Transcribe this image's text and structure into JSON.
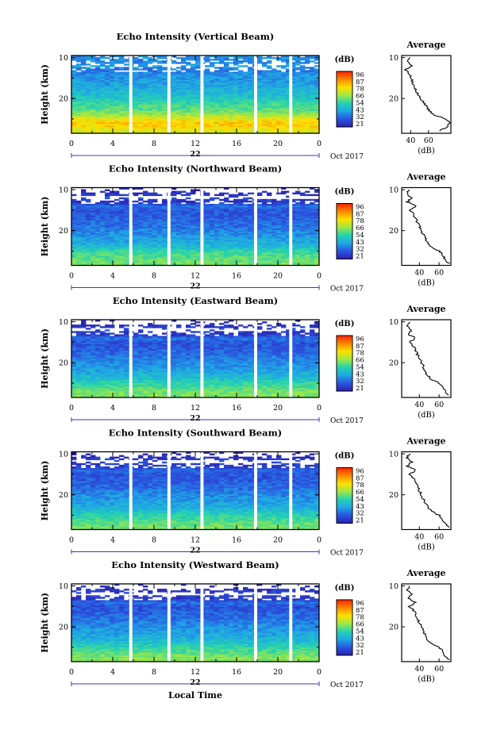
{
  "figure": {
    "x_axis_label": "Local Time",
    "date_day": "22",
    "date_suffix": "Oct 2017",
    "colorbar_unit": "(dB)",
    "colorbar_ticks": [
      "96",
      "87",
      "78",
      "66",
      "54",
      "43",
      "32",
      "21"
    ],
    "colorbar_tick_values": [
      96,
      87,
      78,
      66,
      54,
      43,
      32,
      21
    ],
    "colorbar_colors": [
      "#ff2200",
      "#ff8800",
      "#ffe000",
      "#9ee845",
      "#25d3b0",
      "#1fa7e6",
      "#2a55e0",
      "#2b22b0"
    ],
    "x_ticks": [
      "0",
      "4",
      "8",
      "12",
      "16",
      "20",
      "0"
    ],
    "avg_title": "Average",
    "avg_xlabel": "(dB)",
    "ylabel": "Height (km)",
    "y_ticks": [
      "20",
      "10"
    ]
  },
  "chart_data": [
    {
      "type": "heatmap",
      "title": "Echo Intensity (Vertical Beam)",
      "xlabel": "",
      "ylabel": "Height (km)",
      "xlim": [
        0,
        24
      ],
      "ylim": [
        1.5,
        20.5
      ],
      "x_ticks": [
        0,
        4,
        8,
        12,
        16,
        20,
        24
      ],
      "y_ticks": [
        10,
        20
      ],
      "data_gaps_hours": [
        [
          5.6,
          5.9
        ],
        [
          9.3,
          9.6
        ],
        [
          12.5,
          12.8
        ],
        [
          17.7,
          18.0
        ],
        [
          21.1,
          21.4
        ]
      ],
      "colorbar": {
        "label": "(dB)",
        "min": 21,
        "max": 96
      },
      "profile_db": [
        [
          2,
          72
        ],
        [
          3,
          78
        ],
        [
          4,
          80
        ],
        [
          5,
          76
        ],
        [
          6,
          66
        ],
        [
          7,
          61
        ],
        [
          8,
          58
        ],
        [
          9,
          55
        ],
        [
          10,
          51
        ],
        [
          11,
          48
        ],
        [
          12,
          46
        ],
        [
          13,
          44
        ],
        [
          14,
          42
        ],
        [
          15,
          41
        ],
        [
          16,
          40
        ],
        [
          17,
          36
        ],
        [
          18,
          42
        ],
        [
          19,
          38
        ],
        [
          20,
          40
        ]
      ],
      "average": {
        "title": "Average",
        "xlabel": "(dB)",
        "x_ticks": [
          40,
          60
        ],
        "xlim": [
          30,
          85
        ],
        "profile": [
          [
            2,
            72
          ],
          [
            3,
            80
          ],
          [
            4,
            84
          ],
          [
            5,
            79
          ],
          [
            6,
            66
          ],
          [
            7,
            61
          ],
          [
            8,
            58
          ],
          [
            9,
            55
          ],
          [
            10,
            51
          ],
          [
            11,
            48
          ],
          [
            12,
            46
          ],
          [
            13,
            44
          ],
          [
            14,
            42
          ],
          [
            15,
            41
          ],
          [
            16,
            39
          ],
          [
            17,
            34
          ],
          [
            18,
            42
          ],
          [
            19,
            36
          ],
          [
            20,
            40
          ]
        ]
      }
    },
    {
      "type": "heatmap",
      "title": "Echo Intensity (Northward Beam)",
      "xlabel": "",
      "ylabel": "Height (km)",
      "xlim": [
        0,
        24
      ],
      "ylim": [
        1.5,
        20.5
      ],
      "x_ticks": [
        0,
        4,
        8,
        12,
        16,
        20,
        24
      ],
      "y_ticks": [
        10,
        20
      ],
      "data_gaps_hours": [
        [
          5.6,
          5.9
        ],
        [
          9.3,
          9.6
        ],
        [
          12.5,
          12.8
        ],
        [
          17.7,
          18.0
        ],
        [
          21.1,
          21.4
        ]
      ],
      "colorbar": {
        "label": "(dB)",
        "min": 21,
        "max": 96
      },
      "profile_db": [
        [
          2,
          62
        ],
        [
          3,
          60
        ],
        [
          4,
          58
        ],
        [
          5,
          55
        ],
        [
          6,
          48
        ],
        [
          7,
          45
        ],
        [
          8,
          43
        ],
        [
          9,
          40
        ],
        [
          10,
          38
        ],
        [
          11,
          36
        ],
        [
          12,
          35
        ],
        [
          13,
          33
        ],
        [
          14,
          32
        ],
        [
          15,
          31
        ],
        [
          16,
          36
        ],
        [
          17,
          24
        ],
        [
          18,
          30
        ],
        [
          19,
          24
        ],
        [
          20,
          22
        ]
      ],
      "average": {
        "title": "Average",
        "xlabel": "(dB)",
        "x_ticks": [
          40,
          60
        ],
        "xlim": [
          22,
          72
        ],
        "profile": [
          [
            2,
            70
          ],
          [
            3,
            66
          ],
          [
            4,
            64
          ],
          [
            5,
            60
          ],
          [
            6,
            52
          ],
          [
            7,
            48
          ],
          [
            8,
            46
          ],
          [
            9,
            44
          ],
          [
            10,
            42
          ],
          [
            11,
            40
          ],
          [
            12,
            38
          ],
          [
            13,
            36
          ],
          [
            14,
            34
          ],
          [
            15,
            30
          ],
          [
            16,
            36
          ],
          [
            17,
            28
          ],
          [
            18,
            32
          ],
          [
            19,
            27
          ],
          [
            20,
            30
          ]
        ]
      }
    },
    {
      "type": "heatmap",
      "title": "Echo Intensity (Eastward Beam)",
      "xlabel": "",
      "ylabel": "Height (km)",
      "xlim": [
        0,
        24
      ],
      "ylim": [
        1.5,
        20.5
      ],
      "x_ticks": [
        0,
        4,
        8,
        12,
        16,
        20,
        24
      ],
      "y_ticks": [
        10,
        20
      ],
      "data_gaps_hours": [
        [
          5.6,
          5.9
        ],
        [
          9.3,
          9.6
        ],
        [
          12.5,
          12.8
        ],
        [
          17.7,
          18.0
        ],
        [
          21.1,
          21.4
        ]
      ],
      "colorbar": {
        "label": "(dB)",
        "min": 21,
        "max": 96
      },
      "profile_db": [
        [
          2,
          63
        ],
        [
          3,
          62
        ],
        [
          4,
          58
        ],
        [
          5,
          55
        ],
        [
          6,
          50
        ],
        [
          7,
          46
        ],
        [
          8,
          43
        ],
        [
          9,
          41
        ],
        [
          10,
          39
        ],
        [
          11,
          37
        ],
        [
          12,
          35
        ],
        [
          13,
          33
        ],
        [
          14,
          32
        ],
        [
          15,
          31
        ],
        [
          16,
          36
        ],
        [
          17,
          25
        ],
        [
          18,
          30
        ],
        [
          19,
          25
        ],
        [
          20,
          23
        ]
      ],
      "average": {
        "title": "Average",
        "xlabel": "(dB)",
        "x_ticks": [
          40,
          60
        ],
        "xlim": [
          22,
          72
        ],
        "profile": [
          [
            2,
            70
          ],
          [
            3,
            66
          ],
          [
            4,
            64
          ],
          [
            5,
            60
          ],
          [
            6,
            52
          ],
          [
            7,
            48
          ],
          [
            8,
            46
          ],
          [
            9,
            44
          ],
          [
            10,
            42
          ],
          [
            11,
            40
          ],
          [
            12,
            38
          ],
          [
            13,
            36
          ],
          [
            14,
            34
          ],
          [
            15,
            30
          ],
          [
            16,
            36
          ],
          [
            17,
            28
          ],
          [
            18,
            32
          ],
          [
            19,
            27
          ],
          [
            20,
            30
          ]
        ]
      }
    },
    {
      "type": "heatmap",
      "title": "Echo Intensity (Southward Beam)",
      "xlabel": "",
      "ylabel": "Height (km)",
      "xlim": [
        0,
        24
      ],
      "ylim": [
        1.5,
        20.5
      ],
      "x_ticks": [
        0,
        4,
        8,
        12,
        16,
        20,
        24
      ],
      "y_ticks": [
        10,
        20
      ],
      "data_gaps_hours": [
        [
          5.6,
          5.9
        ],
        [
          9.3,
          9.6
        ],
        [
          12.5,
          12.8
        ],
        [
          17.7,
          18.0
        ],
        [
          21.1,
          21.4
        ]
      ],
      "colorbar": {
        "label": "(dB)",
        "min": 21,
        "max": 96
      },
      "profile_db": [
        [
          2,
          62
        ],
        [
          3,
          60
        ],
        [
          4,
          57
        ],
        [
          5,
          54
        ],
        [
          6,
          49
        ],
        [
          7,
          45
        ],
        [
          8,
          43
        ],
        [
          9,
          41
        ],
        [
          10,
          39
        ],
        [
          11,
          37
        ],
        [
          12,
          35
        ],
        [
          13,
          33
        ],
        [
          14,
          32
        ],
        [
          15,
          31
        ],
        [
          16,
          35
        ],
        [
          17,
          25
        ],
        [
          18,
          30
        ],
        [
          19,
          25
        ],
        [
          20,
          22
        ]
      ],
      "average": {
        "title": "Average",
        "xlabel": "(dB)",
        "x_ticks": [
          40,
          60
        ],
        "xlim": [
          22,
          72
        ],
        "profile": [
          [
            2,
            70
          ],
          [
            3,
            66
          ],
          [
            4,
            64
          ],
          [
            5,
            60
          ],
          [
            6,
            52
          ],
          [
            7,
            48
          ],
          [
            8,
            46
          ],
          [
            9,
            44
          ],
          [
            10,
            42
          ],
          [
            11,
            40
          ],
          [
            12,
            38
          ],
          [
            13,
            36
          ],
          [
            14,
            34
          ],
          [
            15,
            30
          ],
          [
            16,
            36
          ],
          [
            17,
            28
          ],
          [
            18,
            32
          ],
          [
            19,
            27
          ],
          [
            20,
            30
          ]
        ]
      }
    },
    {
      "type": "heatmap",
      "title": "Echo Intensity (Westward Beam)",
      "xlabel": "Local Time",
      "ylabel": "Height (km)",
      "xlim": [
        0,
        24
      ],
      "ylim": [
        1.5,
        20.5
      ],
      "x_ticks": [
        0,
        4,
        8,
        12,
        16,
        20,
        24
      ],
      "y_ticks": [
        10,
        20
      ],
      "data_gaps_hours": [
        [
          5.6,
          5.9
        ],
        [
          9.3,
          9.6
        ],
        [
          12.5,
          12.8
        ],
        [
          17.7,
          18.0
        ],
        [
          21.1,
          21.4
        ]
      ],
      "colorbar": {
        "label": "(dB)",
        "min": 21,
        "max": 96
      },
      "profile_db": [
        [
          2,
          64
        ],
        [
          3,
          62
        ],
        [
          4,
          58
        ],
        [
          5,
          55
        ],
        [
          6,
          50
        ],
        [
          7,
          46
        ],
        [
          8,
          44
        ],
        [
          9,
          42
        ],
        [
          10,
          40
        ],
        [
          11,
          38
        ],
        [
          12,
          36
        ],
        [
          13,
          34
        ],
        [
          14,
          32
        ],
        [
          15,
          31
        ],
        [
          16,
          36
        ],
        [
          17,
          25
        ],
        [
          18,
          30
        ],
        [
          19,
          25
        ],
        [
          20,
          23
        ]
      ],
      "average": {
        "title": "Average",
        "xlabel": "(dB)",
        "x_ticks": [
          40,
          60
        ],
        "xlim": [
          22,
          72
        ],
        "profile": [
          [
            2,
            70
          ],
          [
            3,
            66
          ],
          [
            4,
            64
          ],
          [
            5,
            60
          ],
          [
            6,
            52
          ],
          [
            7,
            48
          ],
          [
            8,
            46
          ],
          [
            9,
            44
          ],
          [
            10,
            42
          ],
          [
            11,
            40
          ],
          [
            12,
            38
          ],
          [
            13,
            36
          ],
          [
            14,
            34
          ],
          [
            15,
            30
          ],
          [
            16,
            36
          ],
          [
            17,
            28
          ],
          [
            18,
            32
          ],
          [
            19,
            27
          ],
          [
            20,
            30
          ]
        ]
      }
    }
  ]
}
